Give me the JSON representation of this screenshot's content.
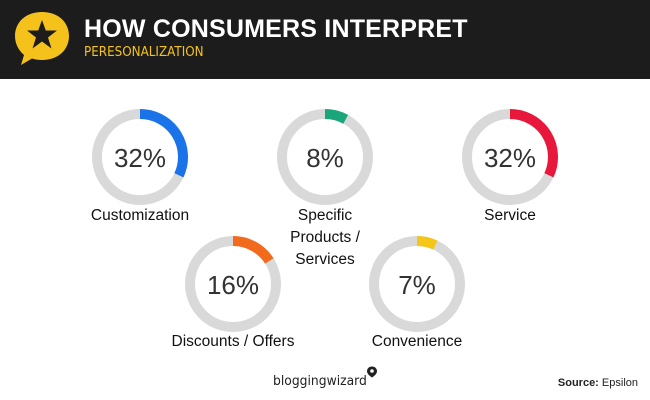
{
  "header": {
    "title": "HOW CONSUMERS INTERPRET",
    "subtitle": "PERESONALIZATION"
  },
  "footer": {
    "brand": "bloggingwizard",
    "source_label": "Source:",
    "source_value": "Epsilon"
  },
  "icons": {
    "logo": "star-speech-bubble-icon",
    "brand_mark": "location-pin-icon"
  },
  "colors": {
    "header_bg": "#1c1c1c",
    "accent_yellow": "#f5c21b",
    "track_gray": "#d9d9d9"
  },
  "chart_data": {
    "type": "donut",
    "items": [
      {
        "label": "Customization",
        "value": 32,
        "display": "32%",
        "color": "#1a73e8"
      },
      {
        "label": "Specific Products / Services",
        "lines": [
          "Specific",
          "Products /",
          "Services"
        ],
        "value": 8,
        "display": "8%",
        "color": "#1aa57a"
      },
      {
        "label": "Service",
        "value": 32,
        "display": "32%",
        "color": "#e8173c"
      },
      {
        "label": "Discounts / Offers",
        "value": 16,
        "display": "16%",
        "color": "#f26a1b"
      },
      {
        "label": "Convenience",
        "value": 7,
        "display": "7%",
        "color": "#f5c518"
      }
    ]
  }
}
